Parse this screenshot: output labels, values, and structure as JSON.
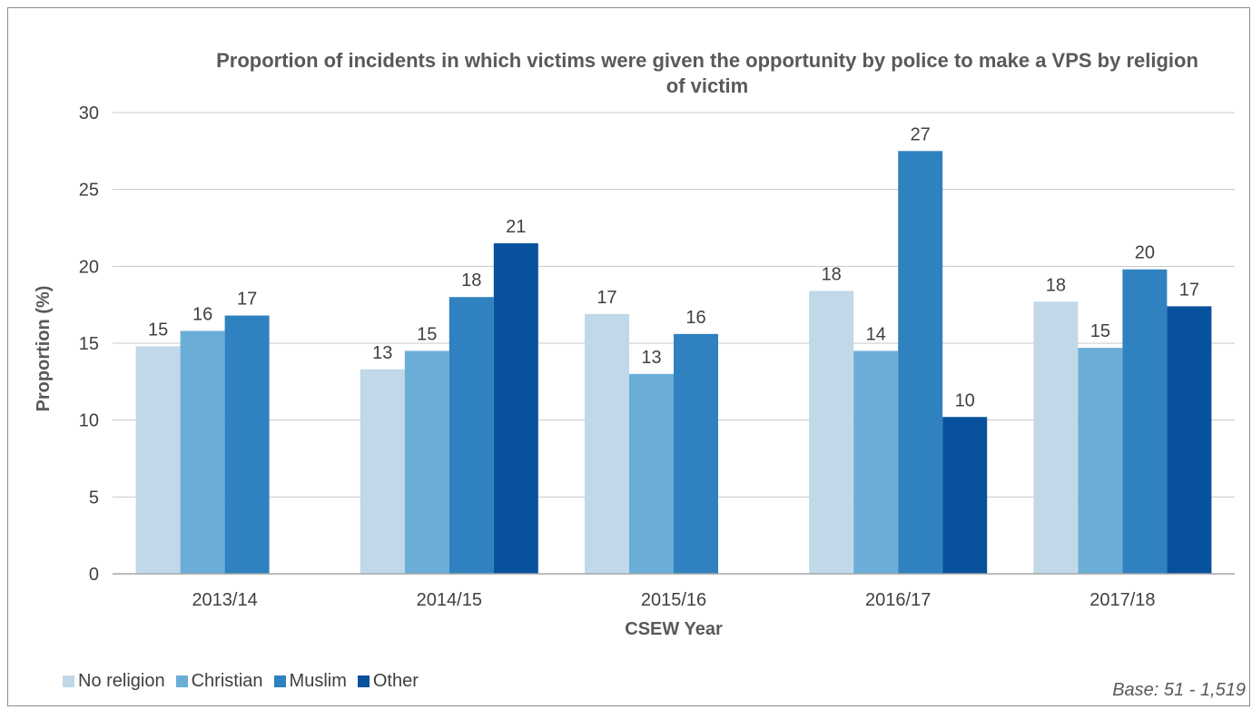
{
  "chart_data": {
    "type": "bar",
    "title": "Proportion of incidents in which victims were given the opportunity by police to make a VPS by religion of victim",
    "xlabel": "CSEW Year",
    "ylabel": "Proportion (%)",
    "ylim": [
      0,
      30
    ],
    "yticks": [
      0,
      5,
      10,
      15,
      20,
      25,
      30
    ],
    "grid": true,
    "legend_position": "bottom-left",
    "categories": [
      "2013/14",
      "2014/15",
      "2015/16",
      "2016/17",
      "2017/18"
    ],
    "series": [
      {
        "name": "No religion",
        "color": "#c0d8e8",
        "values": [
          14.8,
          13.3,
          16.9,
          18.4,
          17.7
        ],
        "labels": [
          "15",
          "13",
          "17",
          "18",
          "18"
        ]
      },
      {
        "name": "Christian",
        "color": "#6aaed8",
        "values": [
          15.8,
          14.5,
          13.0,
          14.5,
          14.7
        ],
        "labels": [
          "16",
          "15",
          "13",
          "14",
          "15"
        ]
      },
      {
        "name": "Muslim",
        "color": "#3081c0",
        "values": [
          16.8,
          18.0,
          15.6,
          27.5,
          19.8
        ],
        "labels": [
          "17",
          "18",
          "16",
          "27",
          "20"
        ]
      },
      {
        "name": "Other",
        "color": "#08519c",
        "values": [
          null,
          21.5,
          null,
          10.2,
          17.4
        ],
        "labels": [
          "",
          "21",
          "",
          "10",
          "17"
        ]
      }
    ],
    "footnote": "Base: 51 - 1,519"
  }
}
